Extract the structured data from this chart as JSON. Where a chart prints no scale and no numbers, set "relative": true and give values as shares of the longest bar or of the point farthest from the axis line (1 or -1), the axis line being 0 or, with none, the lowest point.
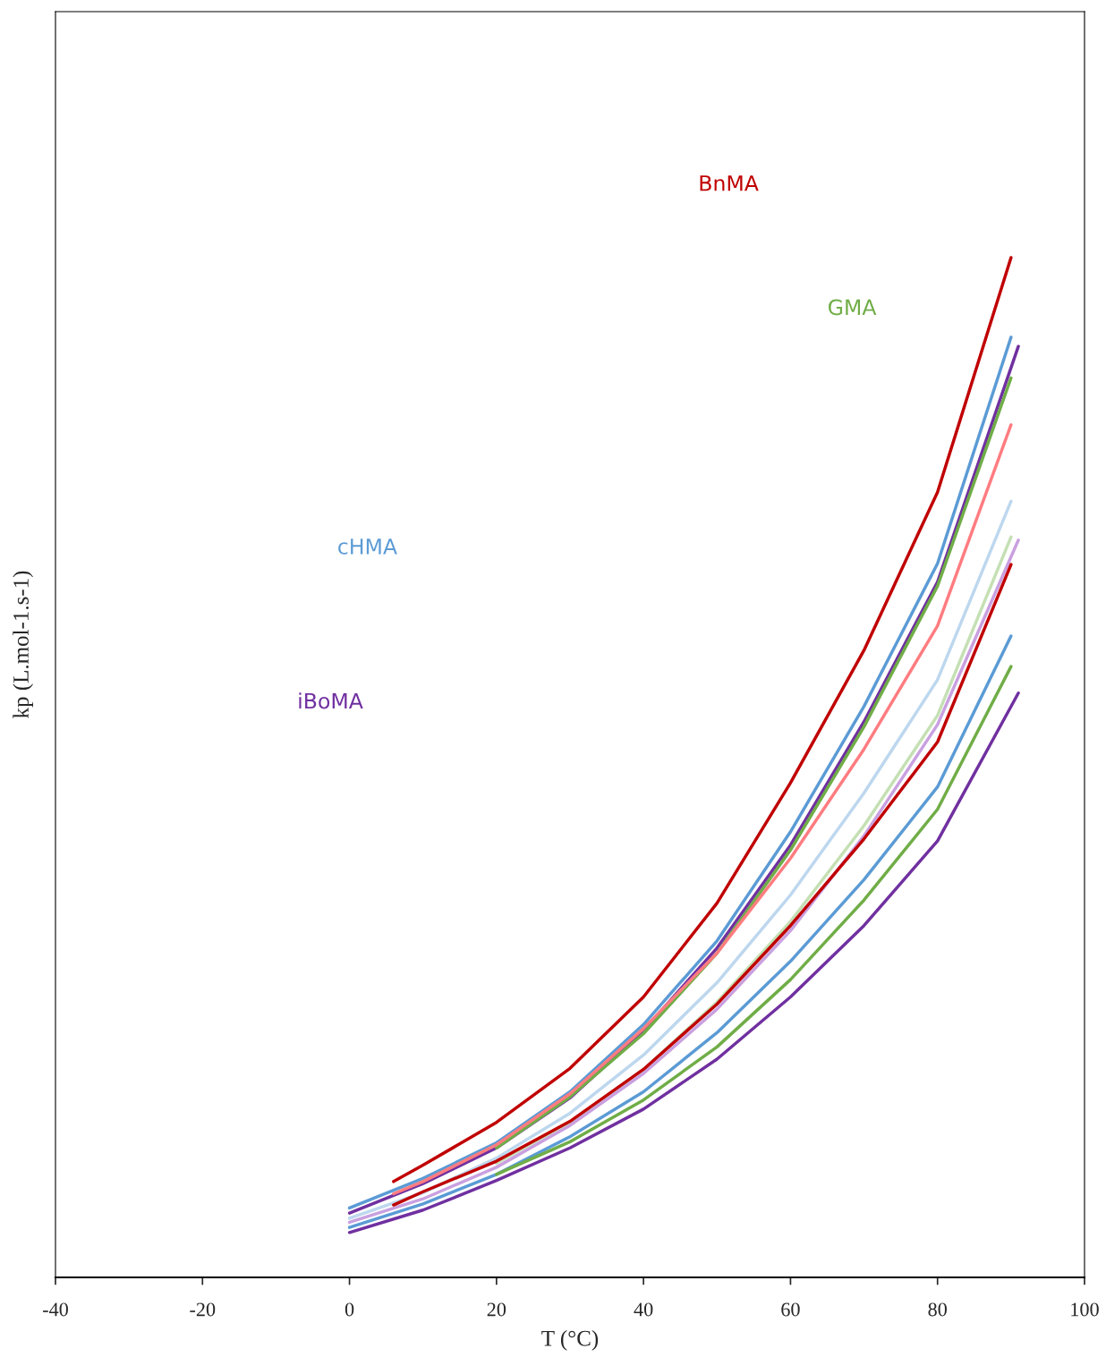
{
  "chart_data": {
    "type": "line",
    "relative": true,
    "xlabel": "T (°C)",
    "ylabel": "kp (L.mol-1.s-1)",
    "xlim": [
      -40,
      100
    ],
    "xticks": [
      -40,
      -20,
      0,
      20,
      40,
      60,
      80,
      100
    ],
    "grid": false,
    "legend": false,
    "marker": "none",
    "line_style": "solid",
    "series": [
      {
        "name": "BnMA",
        "color": "#c00000",
        "x": [
          6,
          10,
          20,
          30,
          40,
          50,
          60,
          70,
          80,
          90
        ],
        "values": [
          0.094,
          0.11,
          0.152,
          0.205,
          0.275,
          0.367,
          0.485,
          0.615,
          0.77,
          1
        ]
      },
      {
        "name": "cHMA",
        "color": "#5b9bd5",
        "x": [
          0,
          10,
          20,
          30,
          40,
          50,
          60,
          70,
          80,
          90
        ],
        "values": [
          0.068,
          0.097,
          0.132,
          0.182,
          0.248,
          0.33,
          0.437,
          0.56,
          0.7,
          0.922
        ]
      },
      {
        "name": "iBoMA",
        "color": "#7030a0",
        "x": [
          0,
          10,
          20,
          30,
          40,
          50,
          60,
          70,
          80,
          91
        ],
        "values": [
          0.063,
          0.092,
          0.127,
          0.176,
          0.242,
          0.323,
          0.424,
          0.545,
          0.682,
          0.913
        ]
      },
      {
        "name": "GMA",
        "color": "#70ad47",
        "x": [
          20,
          30,
          40,
          50,
          60,
          70,
          80,
          90
        ],
        "values": [
          0.127,
          0.177,
          0.239,
          0.318,
          0.419,
          0.54,
          0.678,
          0.882
        ]
      },
      {
        "color": "#ff7c80",
        "x": [
          6,
          10,
          20,
          30,
          40,
          50,
          60,
          70,
          80,
          90
        ],
        "values": [
          0.082,
          0.094,
          0.13,
          0.18,
          0.244,
          0.318,
          0.411,
          0.518,
          0.639,
          0.836
        ]
      },
      {
        "color": "#bdd7ee",
        "x": [
          0,
          10,
          20,
          30,
          40,
          50,
          60,
          70,
          80,
          90
        ],
        "values": [
          0.058,
          0.083,
          0.117,
          0.161,
          0.218,
          0.289,
          0.375,
          0.475,
          0.586,
          0.761
        ]
      },
      {
        "color": "#c5e0b4",
        "x": [
          20,
          30,
          40,
          50,
          60,
          70,
          80,
          90
        ],
        "values": [
          0.112,
          0.152,
          0.204,
          0.27,
          0.349,
          0.443,
          0.551,
          0.726
        ]
      },
      {
        "color": "#c9a0e0",
        "x": [
          0,
          10,
          20,
          30,
          40,
          50,
          60,
          70,
          80,
          91
        ],
        "values": [
          0.054,
          0.077,
          0.108,
          0.149,
          0.2,
          0.263,
          0.34,
          0.433,
          0.542,
          0.723
        ]
      },
      {
        "color": "#c00000",
        "x": [
          6,
          10,
          20,
          30,
          40,
          50,
          60,
          70,
          80,
          90
        ],
        "values": [
          0.071,
          0.084,
          0.114,
          0.153,
          0.204,
          0.268,
          0.345,
          0.43,
          0.525,
          0.699
        ]
      },
      {
        "color": "#5b9bd5",
        "x": [
          0,
          10,
          20,
          30,
          40,
          50,
          60,
          70,
          80,
          90
        ],
        "values": [
          0.049,
          0.072,
          0.101,
          0.138,
          0.182,
          0.24,
          0.31,
          0.39,
          0.481,
          0.629
        ]
      },
      {
        "color": "#70ad47",
        "x": [
          20,
          30,
          40,
          50,
          60,
          70,
          80,
          90
        ],
        "values": [
          0.101,
          0.133,
          0.174,
          0.226,
          0.292,
          0.37,
          0.459,
          0.599
        ]
      },
      {
        "color": "#7030a0",
        "x": [
          0,
          10,
          20,
          30,
          40,
          50,
          60,
          70,
          80,
          91
        ],
        "values": [
          0.044,
          0.066,
          0.095,
          0.127,
          0.165,
          0.214,
          0.275,
          0.345,
          0.428,
          0.573
        ]
      }
    ]
  }
}
